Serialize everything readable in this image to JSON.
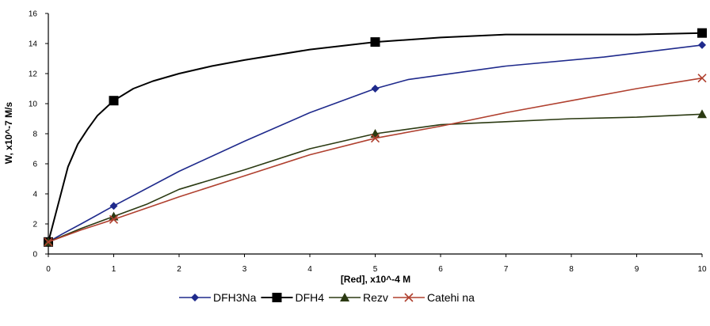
{
  "chart_data": {
    "type": "line",
    "xlabel": "[Red], x10^-4 M",
    "ylabel": "W, x10^-7 M/s",
    "xlim": [
      0,
      10
    ],
    "ylim": [
      0,
      16
    ],
    "x_ticks": [
      "0",
      "1",
      "2",
      "3",
      "4",
      "5",
      "6",
      "7",
      "8",
      "9",
      "10"
    ],
    "y_ticks": [
      "0",
      "2",
      "4",
      "6",
      "8",
      "10",
      "12",
      "14",
      "16"
    ],
    "grid": false,
    "legend_position": "bottom",
    "series": [
      {
        "name": "DFH3Na",
        "color": "#1f2a8c",
        "marker": "diamond",
        "markers_x": [
          0,
          1,
          5,
          10
        ],
        "x": [
          0,
          0.2,
          0.5,
          1,
          2,
          3,
          4,
          5,
          5.5,
          7,
          8.5,
          10
        ],
        "y": [
          0.8,
          1.3,
          2.0,
          3.2,
          5.5,
          7.5,
          9.4,
          11.0,
          11.6,
          12.5,
          13.1,
          13.9
        ]
      },
      {
        "name": "DFH4",
        "color": "#000000",
        "marker": "square",
        "markers_x": [
          0,
          1,
          5,
          10
        ],
        "x": [
          0,
          0.15,
          0.3,
          0.45,
          0.6,
          0.75,
          1,
          1.3,
          1.6,
          2,
          2.5,
          3,
          4,
          5,
          6,
          7,
          8,
          9,
          10
        ],
        "y": [
          0.8,
          3.3,
          5.8,
          7.3,
          8.3,
          9.2,
          10.2,
          11.0,
          11.5,
          12.0,
          12.5,
          12.9,
          13.6,
          14.1,
          14.4,
          14.6,
          14.6,
          14.6,
          14.7
        ]
      },
      {
        "name": "Rezv",
        "color": "#2b3a12",
        "marker": "triangle",
        "markers_x": [
          0,
          1,
          5,
          10
        ],
        "x": [
          0,
          0.5,
          1,
          1.5,
          2,
          3,
          4,
          5,
          6,
          7,
          8,
          9,
          10
        ],
        "y": [
          0.8,
          1.7,
          2.5,
          3.3,
          4.3,
          5.6,
          7.0,
          8.0,
          8.6,
          8.8,
          9.0,
          9.1,
          9.3
        ]
      },
      {
        "name": "Catehi na",
        "color": "#b0402f",
        "marker": "x",
        "markers_x": [
          0,
          1,
          5,
          10
        ],
        "x": [
          0,
          0.5,
          1,
          2,
          3,
          4,
          5,
          6,
          7,
          8,
          9,
          10
        ],
        "y": [
          0.8,
          1.6,
          2.3,
          3.8,
          5.2,
          6.6,
          7.7,
          8.5,
          9.4,
          10.2,
          11.0,
          11.7
        ]
      }
    ]
  }
}
